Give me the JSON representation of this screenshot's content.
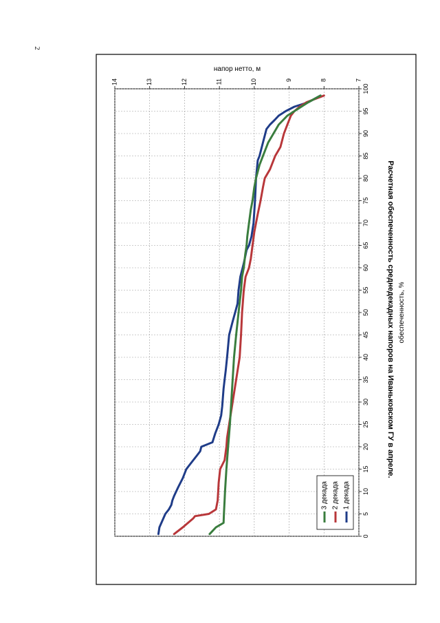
{
  "page": {
    "number": "2"
  },
  "chart_data": {
    "type": "line",
    "title": "Расчетная обеспеченность среднедекадных напоров на Иваньковском ГУ в апреле.",
    "xlabel": "обеспеченность, %",
    "ylabel": "напор нетто, м",
    "xlim": [
      0,
      100
    ],
    "ylim": [
      7,
      14
    ],
    "x_ticks": [
      "0",
      "5",
      "10",
      "15",
      "20",
      "25",
      "30",
      "35",
      "40",
      "45",
      "50",
      "55",
      "60",
      "65",
      "70",
      "75",
      "80",
      "85",
      "90",
      "95",
      "100"
    ],
    "y_ticks": [
      "7",
      "8",
      "9",
      "10",
      "11",
      "12",
      "13",
      "14"
    ],
    "grid": true,
    "legend_position": "top-right",
    "series": [
      {
        "name": "1 декада",
        "color": "#1f3c88",
        "x": [
          0.5,
          2,
          5,
          6,
          7,
          8,
          9,
          11,
          13,
          15,
          16,
          17,
          18,
          19,
          20,
          21,
          23,
          25,
          27,
          29,
          31,
          33,
          35,
          37,
          40,
          45,
          48,
          50,
          52,
          55,
          58,
          61,
          64,
          65,
          67,
          70,
          75,
          80,
          84,
          85,
          88,
          91,
          92,
          93,
          94,
          95,
          96,
          97,
          98.5
        ],
        "y": [
          12.75,
          12.72,
          12.55,
          12.45,
          12.38,
          12.35,
          12.3,
          12.18,
          12.05,
          11.95,
          11.85,
          11.75,
          11.65,
          11.55,
          11.52,
          11.2,
          11.12,
          11.02,
          10.95,
          10.92,
          10.9,
          10.88,
          10.85,
          10.82,
          10.78,
          10.72,
          10.62,
          10.55,
          10.48,
          10.45,
          10.4,
          10.3,
          10.22,
          10.15,
          10.08,
          10.02,
          9.98,
          9.95,
          9.9,
          9.85,
          9.75,
          9.65,
          9.55,
          9.42,
          9.3,
          9.1,
          8.85,
          8.45,
          8.1
        ]
      },
      {
        "name": "2 декада",
        "color": "#b8373a",
        "x": [
          0.5,
          2,
          4,
          4.5,
          5,
          6,
          8,
          12,
          15,
          17,
          20,
          22,
          25,
          30,
          35,
          40,
          45,
          50,
          55,
          58,
          60,
          62,
          65,
          68,
          70,
          72,
          75,
          78,
          80,
          82,
          85,
          87,
          90,
          92,
          94,
          95,
          96,
          97,
          98.5
        ],
        "y": [
          12.3,
          12.05,
          11.75,
          11.7,
          11.3,
          11.1,
          11.05,
          11.02,
          10.98,
          10.85,
          10.8,
          10.78,
          10.72,
          10.62,
          10.52,
          10.42,
          10.38,
          10.35,
          10.3,
          10.25,
          10.15,
          10.1,
          10.05,
          10.0,
          9.95,
          9.9,
          9.82,
          9.75,
          9.7,
          9.55,
          9.4,
          9.25,
          9.15,
          9.05,
          8.95,
          8.85,
          8.7,
          8.5,
          8.0
        ]
      },
      {
        "name": "3 декада",
        "color": "#3a7d3e",
        "x": [
          0.5,
          2,
          3,
          5,
          8,
          10,
          15,
          20,
          25,
          30,
          35,
          40,
          45,
          50,
          55,
          58,
          60,
          63,
          65,
          67,
          70,
          73,
          75,
          78,
          80,
          83,
          85,
          88,
          90,
          92,
          94,
          95,
          96,
          97,
          98.5
        ],
        "y": [
          11.28,
          11.1,
          10.88,
          10.87,
          10.85,
          10.84,
          10.8,
          10.75,
          10.7,
          10.66,
          10.62,
          10.58,
          10.52,
          10.45,
          10.38,
          10.35,
          10.3,
          10.26,
          10.22,
          10.2,
          10.15,
          10.1,
          10.05,
          10.0,
          9.95,
          9.85,
          9.75,
          9.6,
          9.45,
          9.3,
          9.05,
          8.85,
          8.65,
          8.45,
          8.1
        ]
      }
    ]
  }
}
